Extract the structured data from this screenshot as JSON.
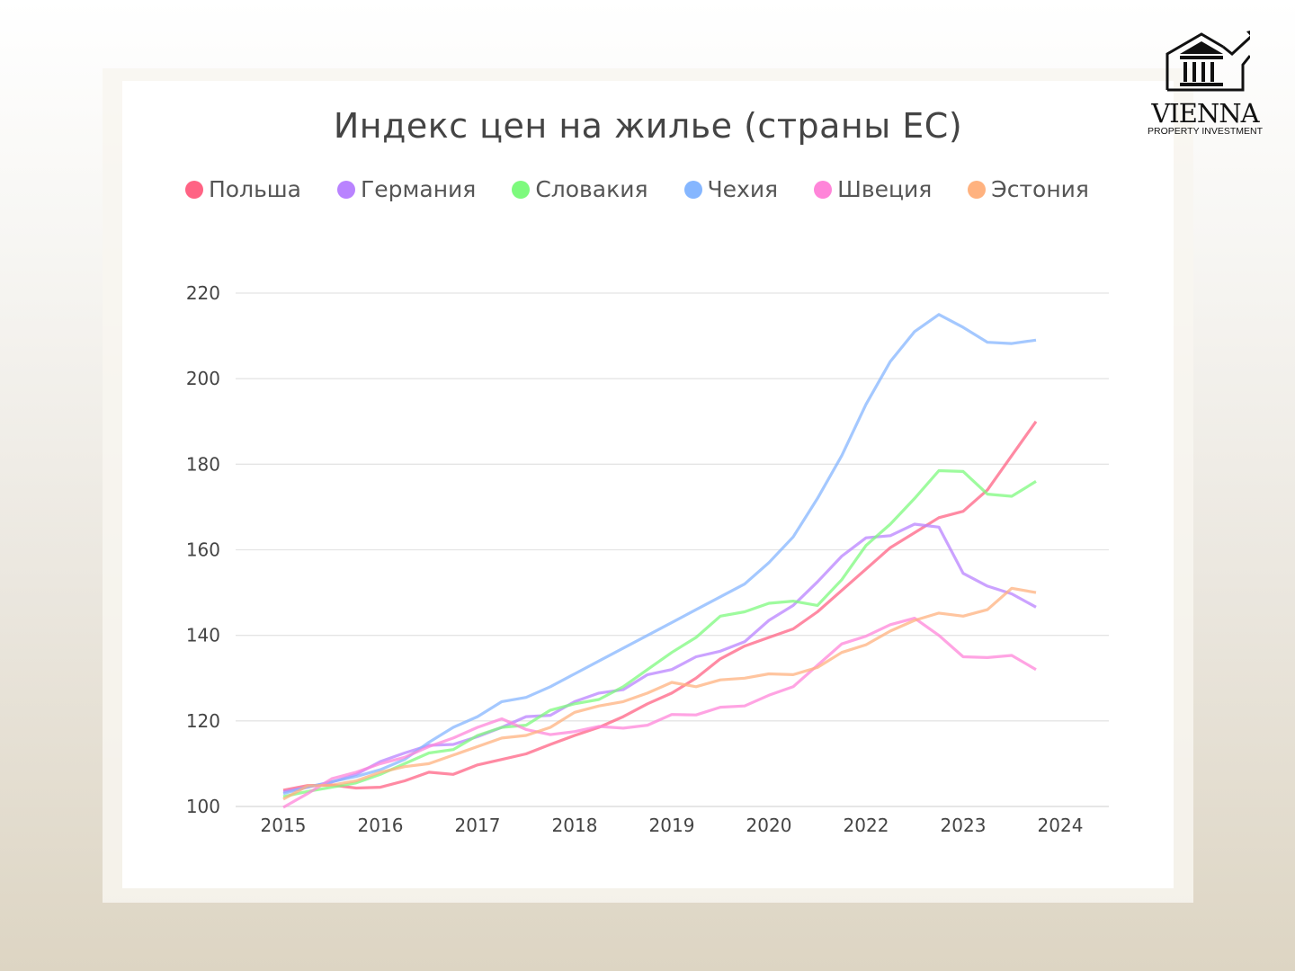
{
  "chart_data": {
    "type": "line",
    "title": "Индекс цен на жилье (страны ЕС)",
    "xlabel": "",
    "ylabel": "",
    "ylim": [
      100,
      220
    ],
    "yticks": [
      100,
      120,
      140,
      160,
      180,
      200,
      220
    ],
    "x_tick_labels": [
      "2015",
      "2016",
      "2017",
      "2018",
      "2019",
      "2020",
      "2022",
      "2023",
      "2024"
    ],
    "points_per_tick": 4,
    "grid": true,
    "legend_position": "top",
    "series": [
      {
        "name": "Польша",
        "color": "#ff6384",
        "values": [
          103.8,
          104.9,
          105,
          104.3,
          104.5,
          106,
          108,
          107.5,
          109.7,
          111,
          112.3,
          114.5,
          116.6,
          118.5,
          121,
          124,
          126.5,
          130,
          134.5,
          137.5,
          139.5,
          141.5,
          145.5,
          150.5,
          155.5,
          160.5,
          164,
          167.5,
          169,
          174,
          182,
          190
        ]
      },
      {
        "name": "Германия",
        "color": "#b983ff",
        "values": [
          103.4,
          104.5,
          105.7,
          107.5,
          110.5,
          112.5,
          114.3,
          114.5,
          116.3,
          118.5,
          121,
          121.3,
          124.5,
          126.5,
          127.3,
          130.8,
          132,
          135,
          136.3,
          138.5,
          143.5,
          147,
          152.5,
          158.5,
          162.8,
          163.3,
          166,
          165.3,
          154.5,
          151.5,
          149.7,
          146.6
        ]
      },
      {
        "name": "Словакия",
        "color": "#7dfa7d",
        "values": [
          102.3,
          103.5,
          104.5,
          105.5,
          107.5,
          110,
          112.5,
          113.3,
          116.6,
          118.5,
          119,
          122.5,
          124,
          125,
          128,
          132,
          136,
          139.5,
          144.5,
          145.5,
          147.5,
          148,
          147,
          153,
          161,
          166,
          172,
          178.5,
          178.3,
          173,
          172.5,
          176
        ]
      },
      {
        "name": "Чехия",
        "color": "#85b6ff",
        "values": [
          103,
          104.5,
          105.8,
          107,
          108.6,
          111,
          115,
          118.5,
          121,
          124.5,
          125.5,
          128,
          131,
          134,
          137,
          140,
          143,
          146,
          149,
          152,
          157,
          163,
          172,
          182,
          194,
          204,
          211,
          215,
          212,
          208.5,
          208.2,
          209
        ]
      },
      {
        "name": "Швеция",
        "color": "#ff85d9",
        "values": [
          99.8,
          103,
          106.5,
          108,
          110,
          111.5,
          114,
          116,
          118.5,
          120.5,
          118,
          116.8,
          117.5,
          118.7,
          118.3,
          119,
          121.5,
          121.4,
          123.2,
          123.5,
          126,
          128,
          133,
          138,
          139.8,
          142.5,
          144,
          140,
          135,
          134.8,
          135.3,
          132
        ]
      },
      {
        "name": "Эстония",
        "color": "#ffb27f",
        "values": [
          101.7,
          104.8,
          105,
          106,
          108,
          109.3,
          110,
          112,
          114,
          116,
          116.6,
          118.5,
          122,
          123.5,
          124.5,
          126.5,
          129,
          128,
          129.6,
          130,
          131,
          130.8,
          132.5,
          136,
          137.8,
          141,
          143.5,
          145.2,
          144.5,
          146,
          151,
          150
        ]
      }
    ]
  },
  "logo": {
    "name": "VIENNA",
    "subtitle": "PROPERTY INVESTMENT"
  }
}
